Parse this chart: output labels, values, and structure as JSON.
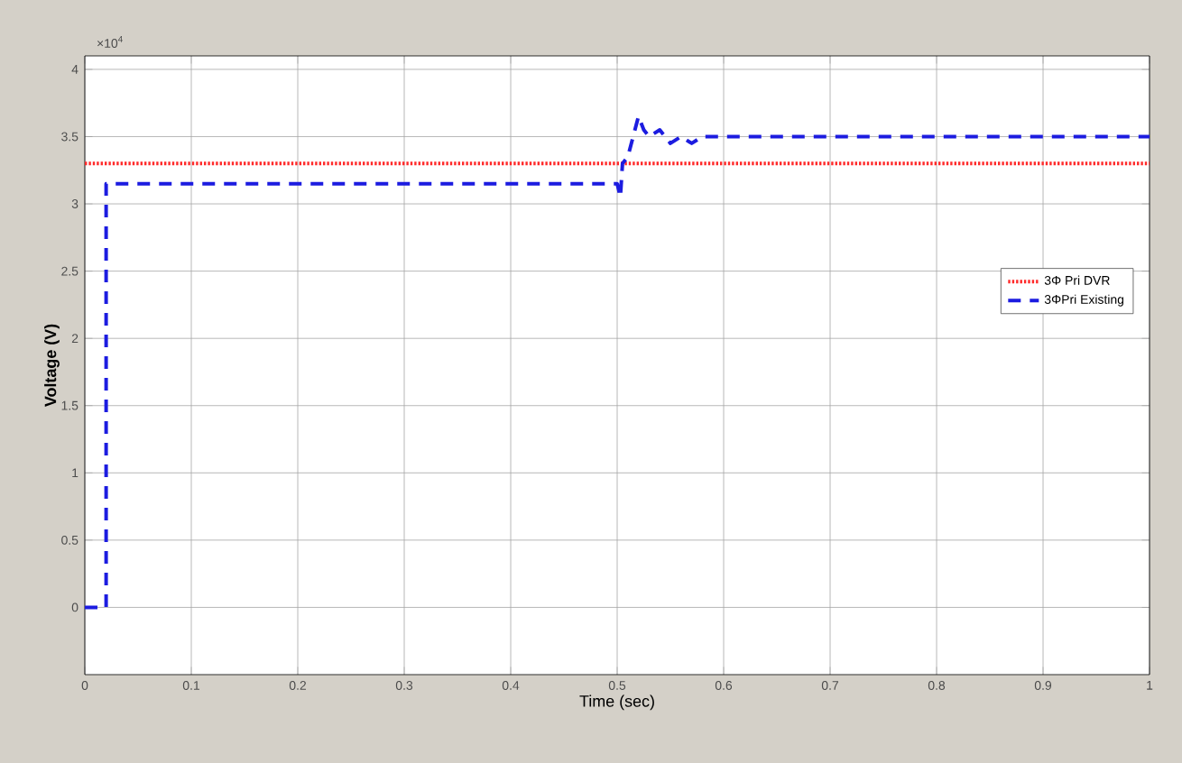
{
  "chart_data": {
    "type": "line",
    "xlabel": "Time (sec)",
    "ylabel": "Voltage (V)",
    "annotations": [
      "×10$^{4}$"
    ],
    "xlim": [
      0,
      1
    ],
    "ylim": [
      -0.5,
      4.1
    ],
    "xticks": [
      0,
      0.1,
      0.2,
      0.3,
      0.4,
      0.5,
      0.6,
      0.7,
      0.8,
      0.9,
      1
    ],
    "yticks": [
      0,
      0.5,
      1,
      1.5,
      2,
      2.5,
      3,
      3.5,
      4
    ],
    "grid": true,
    "legend": "right",
    "marker": "none",
    "series": [
      {
        "name": "3Φ Pri DVR",
        "color": "#ff2a2a",
        "line_style": "dotted",
        "x": [
          0,
          1
        ],
        "values": [
          3.3,
          3.3
        ]
      },
      {
        "name": "3ΦPri Existing",
        "color": "#1c1ce0",
        "line_style": "dashed",
        "x": [
          0,
          0.02,
          0.02,
          0.5,
          0.503,
          0.505,
          0.51,
          0.515,
          0.52,
          0.525,
          0.53,
          0.54,
          0.55,
          0.56,
          0.57,
          0.58,
          1
        ],
        "values": [
          0,
          0,
          3.15,
          3.15,
          3.05,
          3.3,
          3.35,
          3.5,
          3.65,
          3.55,
          3.5,
          3.55,
          3.45,
          3.5,
          3.45,
          3.5,
          3.5
        ]
      }
    ]
  }
}
